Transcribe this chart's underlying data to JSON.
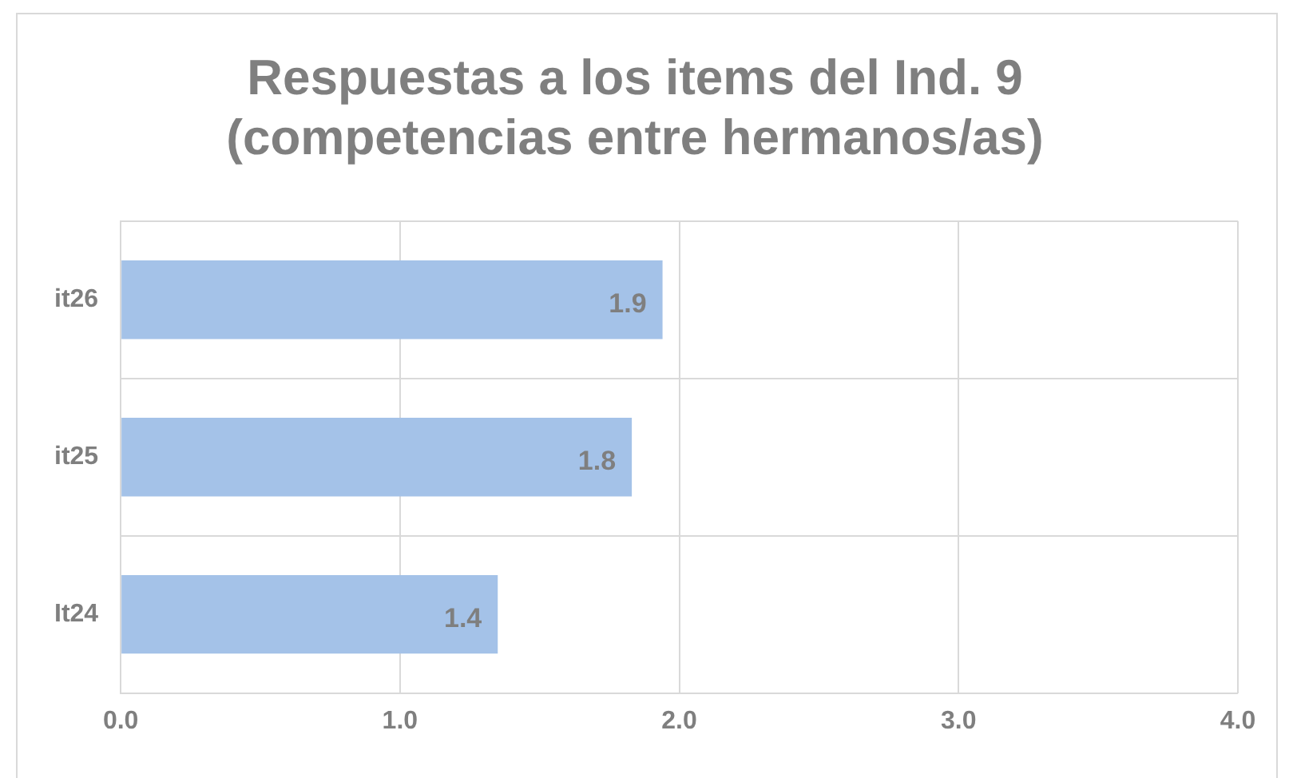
{
  "chart_data": {
    "type": "bar",
    "orientation": "horizontal",
    "title": "Respuestas a los items del Ind. 9\n(competencias entre hermanos/as)",
    "categories": [
      "it26",
      "it25",
      "It24"
    ],
    "values": [
      1.94,
      1.83,
      1.35
    ],
    "value_labels": [
      "1.9",
      "1.8",
      "1.4"
    ],
    "color": "#a4c2e8",
    "xlim": [
      0,
      4
    ],
    "xticks": [
      {
        "value": 0,
        "label": "0.0"
      },
      {
        "value": 1,
        "label": "1.0"
      },
      {
        "value": 2,
        "label": "2.0"
      },
      {
        "value": 3,
        "label": "3.0"
      },
      {
        "value": 4,
        "label": "4.0"
      }
    ],
    "grid": true
  }
}
